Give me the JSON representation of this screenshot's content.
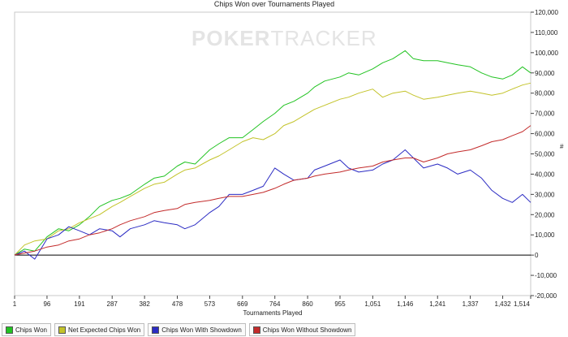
{
  "watermark": {
    "brand_bold": "POKER",
    "brand_light": "TRACKER"
  },
  "chart_data": {
    "type": "line",
    "title": "Chips Won over Tournaments Played",
    "xlabel": "Tournaments Played",
    "ylabel": "#",
    "xlim": [
      1,
      1514
    ],
    "ylim": [
      -20000,
      120000
    ],
    "x_ticks": [
      1,
      96,
      191,
      287,
      382,
      478,
      573,
      669,
      764,
      860,
      955,
      1051,
      1146,
      1241,
      1337,
      1432,
      1514
    ],
    "x_tick_labels": [
      "1",
      "96",
      "191",
      "287",
      "382",
      "478",
      "573",
      "669",
      "764",
      "860",
      "955",
      "1,051",
      "1,146",
      "1,241",
      "1,337",
      "1,432",
      "1,514"
    ],
    "y_ticks": [
      -20000,
      -10000,
      0,
      10000,
      20000,
      30000,
      40000,
      50000,
      60000,
      70000,
      80000,
      90000,
      100000,
      110000,
      120000
    ],
    "y_tick_labels": [
      "-20,000",
      "-10,000",
      "0",
      "10,000",
      "20,000",
      "30,000",
      "40,000",
      "50,000",
      "60,000",
      "70,000",
      "80,000",
      "90,000",
      "100,000",
      "110,000",
      "120,000"
    ],
    "grid": false,
    "legend_position": "bottom-left",
    "series": [
      {
        "name": "Chips Won",
        "color": "#22c322",
        "x": [
          1,
          30,
          60,
          96,
          130,
          160,
          191,
          220,
          250,
          287,
          310,
          340,
          382,
          410,
          440,
          478,
          500,
          530,
          573,
          600,
          630,
          669,
          700,
          730,
          764,
          790,
          820,
          860,
          880,
          910,
          955,
          980,
          1010,
          1051,
          1080,
          1110,
          1146,
          1170,
          1200,
          1241,
          1270,
          1300,
          1337,
          1370,
          1400,
          1432,
          1460,
          1490,
          1514
        ],
        "y": [
          0,
          3000,
          2000,
          9000,
          13000,
          12000,
          15000,
          19000,
          24000,
          27000,
          28000,
          30000,
          35000,
          38000,
          39000,
          44000,
          46000,
          45000,
          52000,
          55000,
          58000,
          58000,
          62000,
          66000,
          70000,
          74000,
          76000,
          80000,
          83000,
          86000,
          88000,
          90000,
          89000,
          92000,
          95000,
          97000,
          101000,
          97000,
          96000,
          96000,
          95000,
          94000,
          93000,
          90000,
          88000,
          87000,
          89000,
          93000,
          90000
        ]
      },
      {
        "name": "Net Expected Chips Won",
        "color": "#c3c32a",
        "x": [
          1,
          30,
          60,
          96,
          130,
          160,
          191,
          220,
          250,
          287,
          310,
          340,
          382,
          410,
          440,
          478,
          500,
          530,
          573,
          600,
          630,
          669,
          700,
          730,
          764,
          790,
          820,
          860,
          880,
          910,
          955,
          980,
          1010,
          1051,
          1080,
          1110,
          1146,
          1170,
          1200,
          1241,
          1270,
          1300,
          1337,
          1370,
          1400,
          1432,
          1460,
          1490,
          1514
        ],
        "y": [
          0,
          5000,
          7000,
          8000,
          12000,
          13000,
          16000,
          18000,
          20000,
          24000,
          26000,
          29000,
          33000,
          35000,
          36000,
          40000,
          42000,
          43000,
          47000,
          49000,
          52000,
          56000,
          58000,
          57000,
          60000,
          64000,
          66000,
          70000,
          72000,
          74000,
          77000,
          78000,
          80000,
          82000,
          78000,
          80000,
          81000,
          79000,
          77000,
          78000,
          79000,
          80000,
          81000,
          80000,
          79000,
          80000,
          82000,
          84000,
          85000
        ]
      },
      {
        "name": "Chips Won With Showdown",
        "color": "#2b2bc3",
        "x": [
          1,
          30,
          60,
          96,
          130,
          160,
          191,
          220,
          250,
          287,
          310,
          340,
          382,
          410,
          440,
          478,
          500,
          530,
          573,
          600,
          630,
          669,
          700,
          730,
          764,
          790,
          820,
          860,
          880,
          910,
          955,
          980,
          1010,
          1051,
          1080,
          1110,
          1146,
          1170,
          1200,
          1241,
          1270,
          1300,
          1337,
          1370,
          1400,
          1432,
          1460,
          1490,
          1514
        ],
        "y": [
          0,
          2000,
          -2000,
          8000,
          10000,
          14000,
          12000,
          10000,
          13000,
          12000,
          9000,
          13000,
          15000,
          17000,
          16000,
          15000,
          13000,
          15000,
          21000,
          24000,
          30000,
          30000,
          32000,
          34000,
          43000,
          40000,
          37000,
          38000,
          42000,
          44000,
          47000,
          43000,
          41000,
          42000,
          45000,
          47000,
          52000,
          48000,
          43000,
          45000,
          43000,
          40000,
          42000,
          38000,
          32000,
          28000,
          26000,
          30000,
          26000
        ]
      },
      {
        "name": "Chips Won Without Showdown",
        "color": "#c32b2b",
        "x": [
          1,
          30,
          60,
          96,
          130,
          160,
          191,
          220,
          250,
          287,
          310,
          340,
          382,
          410,
          440,
          478,
          500,
          530,
          573,
          600,
          630,
          669,
          700,
          730,
          764,
          790,
          820,
          860,
          880,
          910,
          955,
          980,
          1010,
          1051,
          1080,
          1110,
          1146,
          1170,
          1200,
          1241,
          1270,
          1300,
          1337,
          1370,
          1400,
          1432,
          1460,
          1490,
          1514
        ],
        "y": [
          0,
          1000,
          2000,
          4000,
          5000,
          7000,
          8000,
          10000,
          11000,
          13000,
          15000,
          17000,
          19000,
          21000,
          22000,
          23000,
          25000,
          26000,
          27000,
          28000,
          29000,
          29000,
          30000,
          31000,
          33000,
          35000,
          37000,
          38000,
          39000,
          40000,
          41000,
          42000,
          43000,
          44000,
          46000,
          47000,
          48000,
          48000,
          46000,
          48000,
          50000,
          51000,
          52000,
          54000,
          56000,
          57000,
          59000,
          61000,
          64000
        ]
      }
    ]
  }
}
